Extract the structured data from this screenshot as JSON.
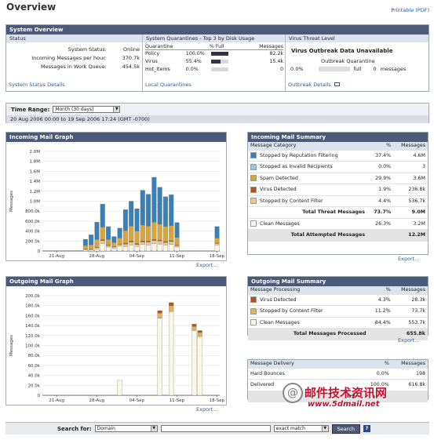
{
  "page": {
    "title": "Overview",
    "printable": "Printable (PDF)"
  },
  "overview": {
    "header": "System Overview",
    "status": {
      "header": "Status",
      "rows": [
        {
          "label": "System Status:",
          "value": "Online"
        },
        {
          "label": "Incoming Messages per hour:",
          "value": "370.7k"
        },
        {
          "label": "Messages in Work Queue:",
          "value": "454.5k"
        }
      ],
      "link": "System Status Details"
    },
    "quarantines": {
      "header": "System Quarantines - Top 3 by Disk Usage",
      "cols": [
        "Quarantine",
        "% Full",
        "Messages"
      ],
      "rows": [
        {
          "name": "Policy",
          "pct": "100.0%",
          "fill": 1.0,
          "msgs": "82.2k"
        },
        {
          "name": "Virus",
          "pct": "55.4%",
          "fill": 0.554,
          "msgs": "15.4k"
        },
        {
          "name": "Hot_Items",
          "pct": "0.0%",
          "fill": 0,
          "msgs": "0"
        }
      ],
      "link": "Local Quarantines"
    },
    "threat": {
      "header": "Virus Threat Level",
      "unavailable": "Virus Outbreak Data Unavailable",
      "oq_title": "Outbreak Quarantine",
      "pct": "0.0%",
      "full": "full",
      "msgs": "0",
      "msgs_label": "messages",
      "link": "Outbreak Details"
    }
  },
  "range": {
    "label": "Time Range:",
    "value": "Month (30 days)",
    "dates": "20 Aug 2006 00:00 to 19 Sep 2006 17:24 (GMT -0700)"
  },
  "incoming_graph": {
    "header": "Incoming Mail Graph",
    "ylabel": "Messages",
    "export": "Export...",
    "yticks": [
      "0",
      "200.0k",
      "400.0k",
      "600.0k",
      "800.0k",
      "1.0M",
      "1.2M",
      "1.4M",
      "1.6M",
      "1.8M",
      "2.0M"
    ],
    "xticks": [
      "21-Aug",
      "28-Aug",
      "04-Sep",
      "11-Sep",
      "18-Sep"
    ]
  },
  "incoming_summary": {
    "header": "Incoming Mail Summary",
    "cols": [
      "Message Category",
      "%",
      "Messages"
    ],
    "rows": [
      {
        "label": "Stopped by Reputation Filtering",
        "pct": "37.4%",
        "msgs": "4.6M",
        "color": "#3a7fb5"
      },
      {
        "label": "Stopped as Invalid Recipients",
        "pct": "0.0%",
        "msgs": "3",
        "color": "#9cc3e0"
      },
      {
        "label": "Spam Detected",
        "pct": "29.9%",
        "msgs": "3.6M",
        "color": "#d8a53c"
      },
      {
        "label": "Virus Detected",
        "pct": "1.9%",
        "msgs": "236.8k",
        "color": "#b5531c"
      },
      {
        "label": "Stopped by Content Filter",
        "pct": "4.4%",
        "msgs": "536.7k",
        "color": "#e6c98c"
      }
    ],
    "total_threat": {
      "label": "Total Threat Messages",
      "pct": "73.7%",
      "msgs": "9.0M"
    },
    "clean": {
      "label": "Clean Messages",
      "pct": "26.3%",
      "msgs": "3.2M",
      "color": "#fbf7e6"
    },
    "total": {
      "label": "Total Attempted Messages",
      "msgs": "12.2M"
    },
    "export": "Export..."
  },
  "outgoing_graph": {
    "header": "Outgoing Mail Graph",
    "ylabel": "Messages",
    "export": "Export...",
    "yticks": [
      "0",
      "20.0k",
      "40.0k",
      "60.0k",
      "80.0k",
      "100.0k",
      "120.0k",
      "140.0k",
      "160.0k",
      "180.0k",
      "200.0k"
    ],
    "xticks": [
      "21-Aug",
      "28-Aug",
      "04-Sep",
      "11-Sep",
      "18-Sep"
    ]
  },
  "outgoing_summary": {
    "header": "Outgoing Mail Summary",
    "cols": [
      "Message Processing",
      "%",
      "Messages"
    ],
    "rows": [
      {
        "label": "Virus Detected",
        "pct": "4.3%",
        "msgs": "28.3k",
        "color": "#b5531c"
      },
      {
        "label": "Stopped by Content Filter",
        "pct": "11.2%",
        "msgs": "73.7k",
        "color": "#e0b05a"
      },
      {
        "label": "Clean Messages",
        "pct": "84.4%",
        "msgs": "553.7k",
        "color": "#fbf7e6"
      }
    ],
    "total": {
      "label": "Total Messages Processed",
      "msgs": "655.8k"
    },
    "export": "Export..."
  },
  "delivery": {
    "cols": [
      "Message Delivery",
      "%",
      "Messages"
    ],
    "rows": [
      {
        "label": "Hard Bounces",
        "pct": "0.0%",
        "msgs": "198"
      },
      {
        "label": "Delivered",
        "pct": "100.0%",
        "msgs": "616.8k"
      }
    ],
    "total": {
      "label": "Total",
      "msgs": ""
    }
  },
  "search": {
    "label": "Search for:",
    "type": "Domain",
    "mode": "exact match",
    "button": "Search",
    "help": "?"
  },
  "watermark": {
    "cn": "邮件技术资讯网",
    "url": "www.5dmail.net"
  }
}
